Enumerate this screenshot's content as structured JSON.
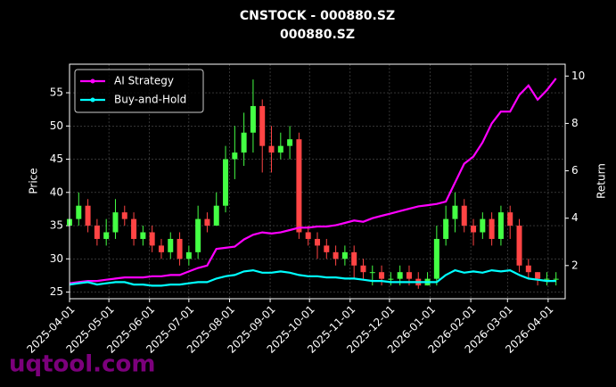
{
  "chart_data": {
    "type": "candlestick",
    "title": "CNSTOCK - 000880.SZ",
    "subtitle": "000880.SZ",
    "ylabel": "Price",
    "y2label": "Return",
    "watermark": "uqtool.com",
    "x": [
      "2025-04-01",
      "2025-04-08",
      "2025-04-15",
      "2025-04-22",
      "2025-04-29",
      "2025-05-06",
      "2025-05-13",
      "2025-05-20",
      "2025-05-27",
      "2025-06-03",
      "2025-06-10",
      "2025-06-17",
      "2025-06-24",
      "2025-07-01",
      "2025-07-08",
      "2025-07-15",
      "2025-07-22",
      "2025-07-29",
      "2025-08-05",
      "2025-08-12",
      "2025-08-19",
      "2025-08-26",
      "2025-09-02",
      "2025-09-09",
      "2025-09-16",
      "2025-09-23",
      "2025-09-30",
      "2025-10-07",
      "2025-10-14",
      "2025-10-21",
      "2025-10-28",
      "2025-11-04",
      "2025-11-11",
      "2025-11-18",
      "2025-11-25",
      "2025-12-02",
      "2025-12-09",
      "2025-12-16",
      "2025-12-23",
      "2025-12-30",
      "2026-01-06",
      "2026-01-13",
      "2026-01-20",
      "2026-01-27",
      "2026-02-03",
      "2026-02-10",
      "2026-02-17",
      "2026-02-24",
      "2026-03-03",
      "2026-03-10",
      "2026-03-17",
      "2026-03-24",
      "2026-03-31",
      "2026-04-07"
    ],
    "candles": {
      "open": [
        35,
        36,
        38,
        35,
        33,
        34,
        37,
        36,
        33,
        34,
        32,
        31,
        33,
        30,
        31,
        36,
        35,
        38,
        45,
        46,
        49,
        53,
        47,
        46,
        47,
        48,
        34,
        33,
        32,
        31,
        30,
        31,
        29,
        28,
        28,
        27,
        27,
        28,
        27,
        26,
        27,
        33,
        36,
        38,
        35,
        34,
        36,
        33,
        37,
        35,
        29,
        28,
        27,
        27
      ],
      "high": [
        39,
        40,
        39,
        36,
        36,
        39,
        38,
        37,
        35,
        35,
        33,
        34,
        34,
        32,
        38,
        37,
        40,
        47,
        50,
        52,
        57,
        54,
        50,
        49,
        50,
        49,
        35,
        34,
        33,
        32,
        32,
        32,
        30,
        29,
        29,
        28,
        29,
        29,
        28,
        28,
        35,
        38,
        40,
        39,
        36,
        37,
        37,
        38,
        38,
        36,
        30,
        28,
        28,
        28
      ],
      "low": [
        33,
        35,
        34,
        32,
        32,
        33,
        35,
        32,
        32,
        31,
        30,
        30,
        29,
        29,
        30,
        34,
        35,
        37,
        42,
        44,
        46,
        43,
        43,
        45,
        45,
        33,
        32,
        30,
        30,
        29,
        29,
        27,
        27,
        26,
        26,
        26,
        26,
        26,
        25.5,
        26,
        26,
        32,
        34,
        34,
        32,
        33,
        32,
        32,
        33,
        28,
        27,
        26,
        26,
        26
      ],
      "close": [
        36,
        38,
        35,
        33,
        34,
        37,
        36,
        33,
        34,
        32,
        31,
        33,
        30,
        31,
        36,
        35,
        38,
        45,
        46,
        49,
        53,
        47,
        46,
        47,
        48,
        34,
        33,
        32,
        31,
        30,
        31,
        29,
        28,
        28,
        27,
        27,
        28,
        27,
        26,
        27,
        33,
        36,
        38,
        35,
        34,
        36,
        33,
        37,
        35,
        29,
        28,
        27,
        27,
        27
      ],
      "up_color": "#44ff44",
      "down_color": "#ff4444"
    },
    "series": [
      {
        "name": "AI Strategy",
        "color": "#ff00ff",
        "axis": "y2",
        "values": [
          1.25,
          1.3,
          1.35,
          1.35,
          1.4,
          1.45,
          1.5,
          1.5,
          1.5,
          1.55,
          1.55,
          1.6,
          1.6,
          1.75,
          1.9,
          2.0,
          2.7,
          2.75,
          2.8,
          3.1,
          3.3,
          3.4,
          3.35,
          3.4,
          3.5,
          3.6,
          3.6,
          3.65,
          3.65,
          3.7,
          3.8,
          3.9,
          3.85,
          4.0,
          4.1,
          4.2,
          4.3,
          4.4,
          4.5,
          4.55,
          4.6,
          4.7,
          5.5,
          6.3,
          6.6,
          7.2,
          8.0,
          8.5,
          8.5,
          9.2,
          9.6,
          9.0,
          9.4,
          9.9
        ]
      },
      {
        "name": "Buy-and-Hold",
        "color": "#00ffff",
        "axis": "y2",
        "values": [
          1.2,
          1.25,
          1.3,
          1.2,
          1.25,
          1.3,
          1.3,
          1.2,
          1.2,
          1.15,
          1.15,
          1.2,
          1.2,
          1.25,
          1.3,
          1.3,
          1.45,
          1.55,
          1.6,
          1.75,
          1.8,
          1.7,
          1.7,
          1.75,
          1.7,
          1.6,
          1.55,
          1.55,
          1.5,
          1.5,
          1.45,
          1.45,
          1.4,
          1.35,
          1.35,
          1.3,
          1.3,
          1.3,
          1.3,
          1.3,
          1.3,
          1.6,
          1.8,
          1.7,
          1.75,
          1.7,
          1.8,
          1.75,
          1.8,
          1.6,
          1.45,
          1.4,
          1.35,
          1.35
        ]
      }
    ],
    "xlim": [
      "2025-04-01",
      "2026-04-14"
    ],
    "xticks": [
      "2025-04-01",
      "2025-05-01",
      "2025-06-01",
      "2025-07-01",
      "2025-08-01",
      "2025-09-01",
      "2025-10-01",
      "2025-11-01",
      "2025-12-01",
      "2026-01-01",
      "2026-02-01",
      "2026-03-01",
      "2026-04-01"
    ],
    "ylim": [
      24,
      59.3
    ],
    "yticks": [
      25,
      30,
      35,
      40,
      45,
      50,
      55
    ],
    "y2lim": [
      0.6,
      10.5
    ],
    "y2ticks": [
      2,
      4,
      6,
      8,
      10
    ],
    "grid": true,
    "legend": "upper left"
  }
}
